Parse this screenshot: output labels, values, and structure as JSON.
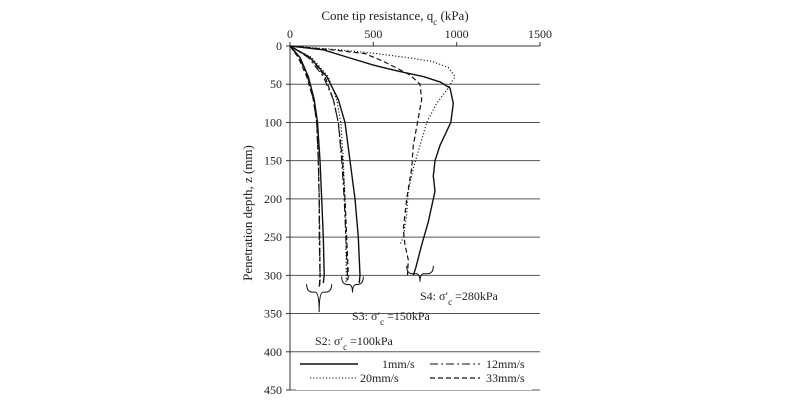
{
  "chart_data": {
    "type": "line",
    "title": "",
    "xlabel_text": "Cone tip resistance, q",
    "xlabel_sub": "c",
    "xlabel_unit": " (kPa)",
    "ylabel": "Penetration depth, z (mm)",
    "xlim": [
      0,
      1500
    ],
    "ylim": [
      0,
      450
    ],
    "x_axis_position": "top",
    "y_inverted": true,
    "grid": "horizontal",
    "xticks": [
      0,
      500,
      1000,
      1500
    ],
    "yticks": [
      0,
      50,
      100,
      150,
      200,
      250,
      300,
      350,
      400,
      450
    ],
    "legend": {
      "placement": "bottom",
      "entries": [
        {
          "label": "1mm/s",
          "style": "solid"
        },
        {
          "label": "12mm/s",
          "style": "dashdot"
        },
        {
          "label": "20mm/s",
          "style": "dotted"
        },
        {
          "label": "33mm/s",
          "style": "dashed"
        }
      ]
    },
    "annotations": [
      {
        "prefix": "S2: σ′",
        "sub": "c",
        "suffix": " =100kPa"
      },
      {
        "prefix": "S3: σ′",
        "sub": "c",
        "suffix": " =150kPa"
      },
      {
        "prefix": "S4: σ′",
        "sub": "c",
        "suffix": " =280kPa"
      }
    ],
    "series": [
      {
        "group": "S2",
        "style": "solid",
        "points": [
          [
            0,
            0
          ],
          [
            60,
            15
          ],
          [
            110,
            40
          ],
          [
            145,
            70
          ],
          [
            165,
            100
          ],
          [
            180,
            150
          ],
          [
            190,
            200
          ],
          [
            200,
            250
          ],
          [
            205,
            300
          ],
          [
            200,
            310
          ]
        ]
      },
      {
        "group": "S2",
        "style": "dashdot",
        "points": [
          [
            0,
            0
          ],
          [
            55,
            15
          ],
          [
            105,
            40
          ],
          [
            140,
            70
          ],
          [
            160,
            100
          ],
          [
            170,
            150
          ],
          [
            175,
            200
          ],
          [
            175,
            250
          ],
          [
            180,
            300
          ],
          [
            175,
            315
          ]
        ]
      },
      {
        "group": "S2",
        "style": "dotted",
        "points": [
          [
            0,
            0
          ],
          [
            60,
            15
          ],
          [
            110,
            40
          ],
          [
            145,
            70
          ],
          [
            165,
            100
          ],
          [
            170,
            150
          ],
          [
            175,
            200
          ],
          [
            178,
            250
          ],
          [
            182,
            300
          ],
          [
            180,
            310
          ]
        ]
      },
      {
        "group": "S2",
        "style": "dashed",
        "points": [
          [
            0,
            0
          ],
          [
            50,
            15
          ],
          [
            100,
            40
          ],
          [
            140,
            70
          ],
          [
            160,
            100
          ],
          [
            170,
            150
          ],
          [
            175,
            200
          ],
          [
            178,
            250
          ],
          [
            180,
            300
          ],
          [
            178,
            315
          ]
        ]
      },
      {
        "group": "S3",
        "style": "solid",
        "points": [
          [
            0,
            0
          ],
          [
            120,
            15
          ],
          [
            220,
            40
          ],
          [
            290,
            70
          ],
          [
            330,
            100
          ],
          [
            360,
            150
          ],
          [
            390,
            200
          ],
          [
            410,
            250
          ],
          [
            420,
            300
          ],
          [
            415,
            310
          ]
        ]
      },
      {
        "group": "S3",
        "style": "dashdot",
        "points": [
          [
            0,
            0
          ],
          [
            110,
            15
          ],
          [
            200,
            40
          ],
          [
            260,
            70
          ],
          [
            290,
            100
          ],
          [
            310,
            150
          ],
          [
            325,
            200
          ],
          [
            335,
            250
          ],
          [
            345,
            300
          ],
          [
            340,
            310
          ]
        ]
      },
      {
        "group": "S3",
        "style": "dotted",
        "points": [
          [
            0,
            0
          ],
          [
            130,
            15
          ],
          [
            230,
            40
          ],
          [
            280,
            70
          ],
          [
            305,
            100
          ],
          [
            320,
            150
          ],
          [
            330,
            200
          ],
          [
            335,
            250
          ],
          [
            338,
            300
          ],
          [
            335,
            310
          ]
        ]
      },
      {
        "group": "S3",
        "style": "dashed",
        "points": [
          [
            0,
            0
          ],
          [
            120,
            15
          ],
          [
            210,
            40
          ],
          [
            260,
            70
          ],
          [
            290,
            100
          ],
          [
            315,
            150
          ],
          [
            330,
            200
          ],
          [
            340,
            250
          ],
          [
            350,
            300
          ],
          [
            345,
            310
          ]
        ]
      },
      {
        "group": "S4",
        "style": "solid",
        "points": [
          [
            0,
            0
          ],
          [
            200,
            5
          ],
          [
            350,
            15
          ],
          [
            500,
            25
          ],
          [
            650,
            33
          ],
          [
            800,
            40
          ],
          [
            900,
            47
          ],
          [
            960,
            55
          ],
          [
            980,
            75
          ],
          [
            965,
            100
          ],
          [
            900,
            130
          ],
          [
            870,
            150
          ],
          [
            860,
            170
          ],
          [
            870,
            190
          ],
          [
            830,
            230
          ],
          [
            790,
            260
          ],
          [
            755,
            290
          ],
          [
            740,
            300
          ]
        ]
      },
      {
        "group": "S4",
        "style": "dotted",
        "points": [
          [
            0,
            0
          ],
          [
            300,
            5
          ],
          [
            520,
            10
          ],
          [
            700,
            15
          ],
          [
            850,
            20
          ],
          [
            950,
            28
          ],
          [
            990,
            40
          ],
          [
            950,
            55
          ],
          [
            880,
            75
          ],
          [
            820,
            100
          ],
          [
            780,
            130
          ],
          [
            740,
            160
          ],
          [
            710,
            190
          ],
          [
            700,
            220
          ],
          [
            680,
            250
          ],
          [
            660,
            260
          ]
        ]
      },
      {
        "group": "S4",
        "style": "dashed",
        "points": [
          [
            0,
            0
          ],
          [
            250,
            5
          ],
          [
            450,
            10
          ],
          [
            560,
            20
          ],
          [
            650,
            30
          ],
          [
            720,
            38
          ],
          [
            780,
            50
          ],
          [
            790,
            70
          ],
          [
            765,
            100
          ],
          [
            740,
            130
          ],
          [
            730,
            160
          ],
          [
            700,
            200
          ],
          [
            680,
            240
          ],
          [
            690,
            260
          ],
          [
            710,
            280
          ],
          [
            705,
            300
          ]
        ]
      }
    ]
  }
}
